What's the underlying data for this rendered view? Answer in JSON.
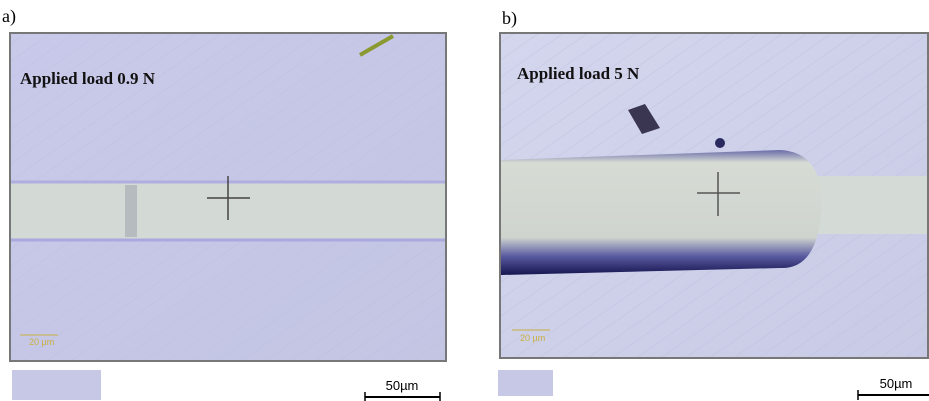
{
  "panels": [
    {
      "label": "a)",
      "annotation": "Applied load 0.9 N",
      "inner_scale": "20 µm",
      "scale_bar": "50µm"
    },
    {
      "label": "b)",
      "annotation": "Applied load 5 N",
      "inner_scale": "20 µm",
      "scale_bar": "50µm"
    }
  ]
}
